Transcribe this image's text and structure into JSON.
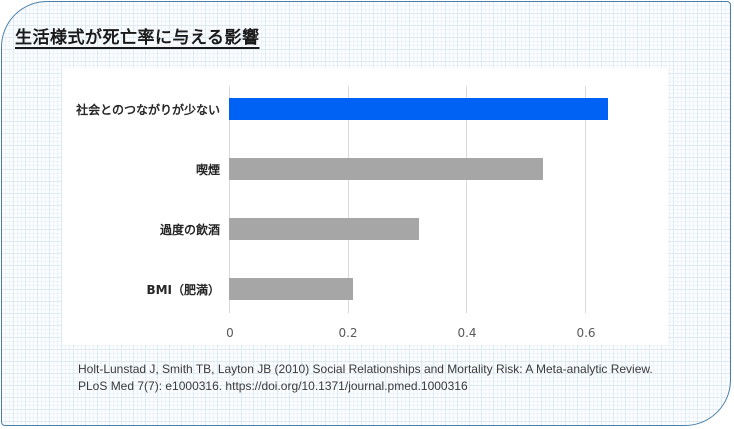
{
  "title": "生活様式が死亡率に与える影響",
  "colors": {
    "highlight": "#0062f5",
    "default": "#a6a6a6",
    "frame_border": "#4a7fa8"
  },
  "chart_data": {
    "type": "bar",
    "orientation": "horizontal",
    "title": "生活様式が死亡率に与える影響",
    "categories": [
      "社会とのつながりが少ない",
      "喫煙",
      "過度の飲酒",
      "BMI（肥満）"
    ],
    "values": [
      0.64,
      0.53,
      0.32,
      0.21
    ],
    "bar_colors": [
      "#0062f5",
      "#a6a6a6",
      "#a6a6a6",
      "#a6a6a6"
    ],
    "xlabel": "",
    "ylabel": "",
    "xlim": [
      0,
      0.65
    ],
    "xticks": [
      "0",
      "0.2",
      "0.4",
      "0.6"
    ],
    "grid": "vertical",
    "legend": "none"
  },
  "citation": {
    "line1": "Holt-Lunstad J, Smith TB, Layton JB (2010) Social Relationships and Mortality Risk: A Meta-analytic Review.",
    "line2": "PLoS Med 7(7): e1000316. https://doi.org/10.1371/journal.pmed.1000316"
  }
}
